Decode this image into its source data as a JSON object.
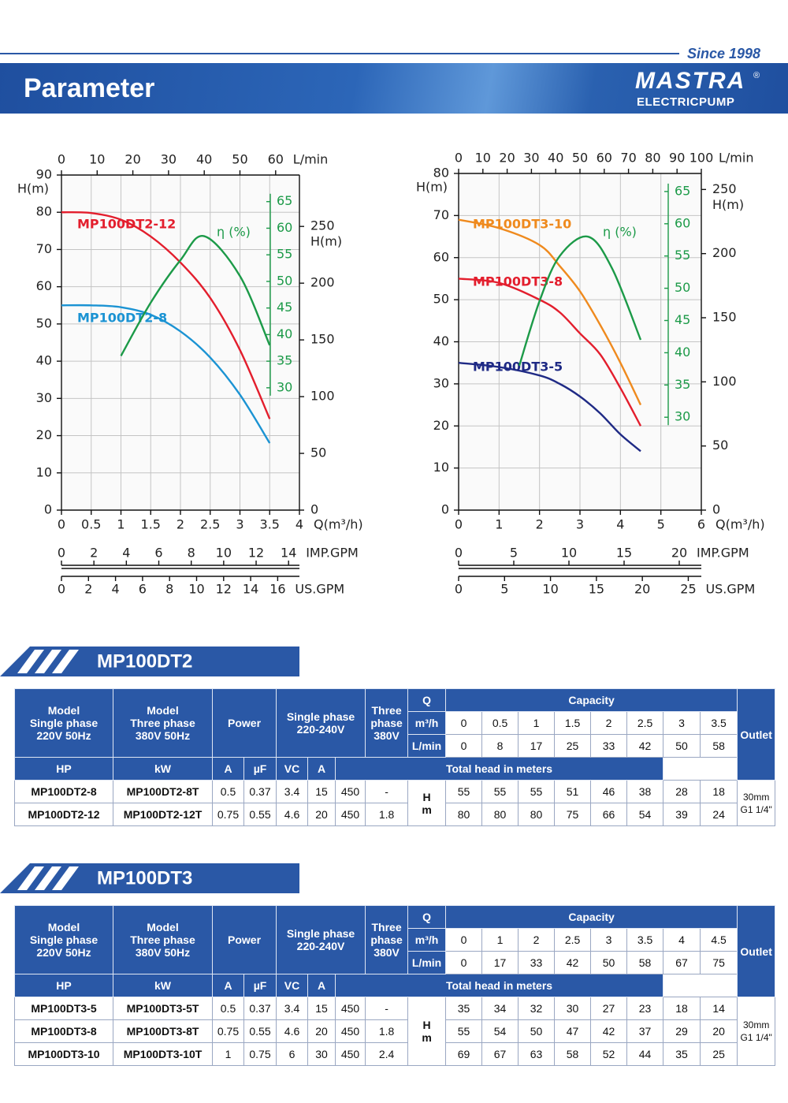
{
  "header": {
    "since": "Since 1998",
    "title": "Parameter",
    "logo": "MASTRA",
    "logo_mark": "®",
    "logo_sub": "ELECTRICPUMP"
  },
  "chart_data": [
    {
      "type": "line",
      "grid": true,
      "x_label": "Q(m³/h)",
      "xlim": [
        0,
        4
      ],
      "xticks": [
        0,
        0.5,
        1,
        1.5,
        2,
        2.5,
        3,
        3.5,
        4
      ],
      "y_label": "H(m)",
      "ylim": [
        0,
        90
      ],
      "yticks": [
        0,
        10,
        20,
        30,
        40,
        50,
        60,
        70,
        80,
        90
      ],
      "x2_label": "L/min",
      "x2lim": [
        0,
        66.67
      ],
      "x2ticks": [
        0,
        10,
        20,
        30,
        40,
        50,
        60
      ],
      "y2_label": "H(m)",
      "y2lim": [
        0,
        295.3
      ],
      "y2ticks": [
        0,
        50,
        100,
        150,
        200,
        250
      ],
      "y3lim": [
        7,
        70
      ],
      "y3ticks": [
        30,
        35,
        40,
        45,
        50,
        55,
        60,
        65
      ],
      "y3color": "#1c9a48",
      "scales": [
        {
          "label": "IMP.GPM",
          "lim": [
            0,
            14.67
          ],
          "ticks": [
            0,
            2,
            4,
            6,
            8,
            10,
            12,
            14
          ]
        },
        {
          "label": "US.GPM",
          "lim": [
            0,
            17.61
          ],
          "ticks": [
            0,
            2,
            4,
            6,
            8,
            10,
            12,
            14,
            16
          ]
        }
      ],
      "series": [
        {
          "name": "MP100DT2-12",
          "color": "#e31e2d",
          "x": [
            0,
            0.5,
            1,
            1.5,
            2,
            2.5,
            3,
            3.5
          ],
          "values": [
            80,
            79.8,
            78,
            73.5,
            66.5,
            57,
            43,
            24.5
          ]
        },
        {
          "name": "MP100DT2-8",
          "color": "#1b93d3",
          "x": [
            0,
            0.5,
            1,
            1.5,
            2,
            2.5,
            3,
            3.5
          ],
          "values": [
            55,
            55,
            54.5,
            52.5,
            48,
            41,
            31,
            18
          ]
        },
        {
          "name": "η (%)",
          "color": "#1c9a48",
          "axis": "y3",
          "x": [
            1,
            1.5,
            2,
            2.4,
            3,
            3.5
          ],
          "values": [
            36,
            46,
            54,
            58.5,
            51,
            38
          ]
        }
      ]
    },
    {
      "type": "line",
      "grid": true,
      "x_label": "Q(m³/h)",
      "xlim": [
        0,
        6
      ],
      "xticks": [
        0,
        1,
        2,
        3,
        4,
        5,
        6
      ],
      "y_label": "H(m)",
      "ylim": [
        0,
        80
      ],
      "yticks": [
        0,
        10,
        20,
        30,
        40,
        50,
        60,
        70,
        80
      ],
      "x2_label": "L/min",
      "x2lim": [
        0,
        100
      ],
      "x2ticks": [
        0,
        10,
        20,
        30,
        40,
        50,
        60,
        70,
        80,
        90,
        100
      ],
      "y2_label": "H(m)",
      "y2lim": [
        0,
        262.5
      ],
      "y2ticks": [
        0,
        50,
        100,
        150,
        200,
        250
      ],
      "y3lim": [
        15.6,
        67.8
      ],
      "y3ticks": [
        30,
        35,
        40,
        45,
        50,
        55,
        60,
        65
      ],
      "y3color": "#1c9a48",
      "scales": [
        {
          "label": "IMP.GPM",
          "lim": [
            0,
            22
          ],
          "ticks": [
            0,
            5,
            10,
            15,
            20
          ]
        },
        {
          "label": "US.GPM",
          "lim": [
            0,
            26.42
          ],
          "ticks": [
            0,
            5,
            10,
            15,
            20,
            25
          ]
        }
      ],
      "series": [
        {
          "name": "MP100DT3-10",
          "color": "#ef8a1e",
          "x": [
            0,
            1,
            2,
            2.5,
            3,
            3.5,
            4,
            4.5
          ],
          "values": [
            69,
            67,
            63,
            58,
            52,
            44,
            35,
            25
          ]
        },
        {
          "name": "MP100DT3-8",
          "color": "#e31e2d",
          "x": [
            0,
            1,
            2,
            2.5,
            3,
            3.5,
            4,
            4.5
          ],
          "values": [
            55,
            54,
            50,
            47,
            42,
            37,
            29,
            20
          ]
        },
        {
          "name": "MP100DT3-5",
          "color": "#1f2a85",
          "x": [
            0,
            1,
            2,
            2.5,
            3,
            3.5,
            4,
            4.5
          ],
          "values": [
            35,
            34,
            32,
            30,
            27,
            23,
            18,
            14
          ]
        },
        {
          "name": "η (%)",
          "color": "#1c9a48",
          "axis": "y3",
          "x": [
            1.5,
            2,
            2.5,
            3.2,
            3.8,
            4.5
          ],
          "values": [
            38,
            48,
            55,
            58,
            53,
            42
          ]
        }
      ]
    }
  ],
  "tables": [
    {
      "title": "MP100DT2",
      "head": {
        "model_single": [
          "Model",
          "Single phase",
          "220V 50Hz"
        ],
        "model_three": [
          "Model",
          "Three phase",
          "380V 50Hz"
        ],
        "power": "Power",
        "single_phase": [
          "Single phase",
          "220-240V"
        ],
        "three_phase": [
          "Three",
          "phase",
          "380V"
        ],
        "q": "Q",
        "capacity": "Capacity",
        "outlet": "Outlet",
        "q_units": [
          "m³/h",
          "L/min"
        ],
        "sub": [
          "HP",
          "kW",
          "A",
          "µF",
          "VC",
          "A"
        ],
        "total_head": "Total head in meters",
        "h": [
          "H",
          "m"
        ]
      },
      "m3h": [
        0,
        0.5,
        1,
        1.5,
        2,
        2.5,
        3,
        3.5
      ],
      "lmin": [
        0,
        8,
        17,
        25,
        33,
        42,
        50,
        58
      ],
      "rows": [
        [
          "MP100DT2-8",
          "MP100DT2-8T",
          0.5,
          0.37,
          3.4,
          15,
          450,
          "-"
        ],
        [
          "MP100DT2-12",
          "MP100DT2-12T",
          0.75,
          0.55,
          4.6,
          20,
          450,
          1.8
        ]
      ],
      "heads": [
        [
          55,
          55,
          55,
          51,
          46,
          38,
          28,
          18
        ],
        [
          80,
          80,
          80,
          75,
          66,
          54,
          39,
          24
        ]
      ],
      "outlet": [
        "30mm",
        "G1 1/4\""
      ]
    },
    {
      "title": "MP100DT3",
      "head": {
        "model_single": [
          "Model",
          "Single phase",
          "220V 50Hz"
        ],
        "model_three": [
          "Model",
          "Three phase",
          "380V 50Hz"
        ],
        "power": "Power",
        "single_phase": [
          "Single phase",
          "220-240V"
        ],
        "three_phase": [
          "Three",
          "phase",
          "380V"
        ],
        "q": "Q",
        "capacity": "Capacity",
        "outlet": "Outlet",
        "q_units": [
          "m³/h",
          "L/min"
        ],
        "sub": [
          "HP",
          "kW",
          "A",
          "µF",
          "VC",
          "A"
        ],
        "total_head": "Total head in meters",
        "h": [
          "H",
          "m"
        ]
      },
      "m3h": [
        0,
        1,
        2,
        2.5,
        3,
        3.5,
        4,
        4.5
      ],
      "lmin": [
        0,
        17,
        33,
        42,
        50,
        58,
        67,
        75
      ],
      "rows": [
        [
          "MP100DT3-5",
          "MP100DT3-5T",
          0.5,
          0.37,
          3.4,
          15,
          450,
          "-"
        ],
        [
          "MP100DT3-8",
          "MP100DT3-8T",
          0.75,
          0.55,
          4.6,
          20,
          450,
          1.8
        ],
        [
          "MP100DT3-10",
          "MP100DT3-10T",
          1,
          0.75,
          6,
          30,
          450,
          2.4
        ]
      ],
      "heads": [
        [
          35,
          34,
          32,
          30,
          27,
          23,
          18,
          14
        ],
        [
          55,
          54,
          50,
          47,
          42,
          37,
          29,
          20
        ],
        [
          69,
          67,
          63,
          58,
          52,
          44,
          35,
          25
        ]
      ],
      "outlet": [
        "30mm",
        "G1 1/4\""
      ]
    }
  ]
}
